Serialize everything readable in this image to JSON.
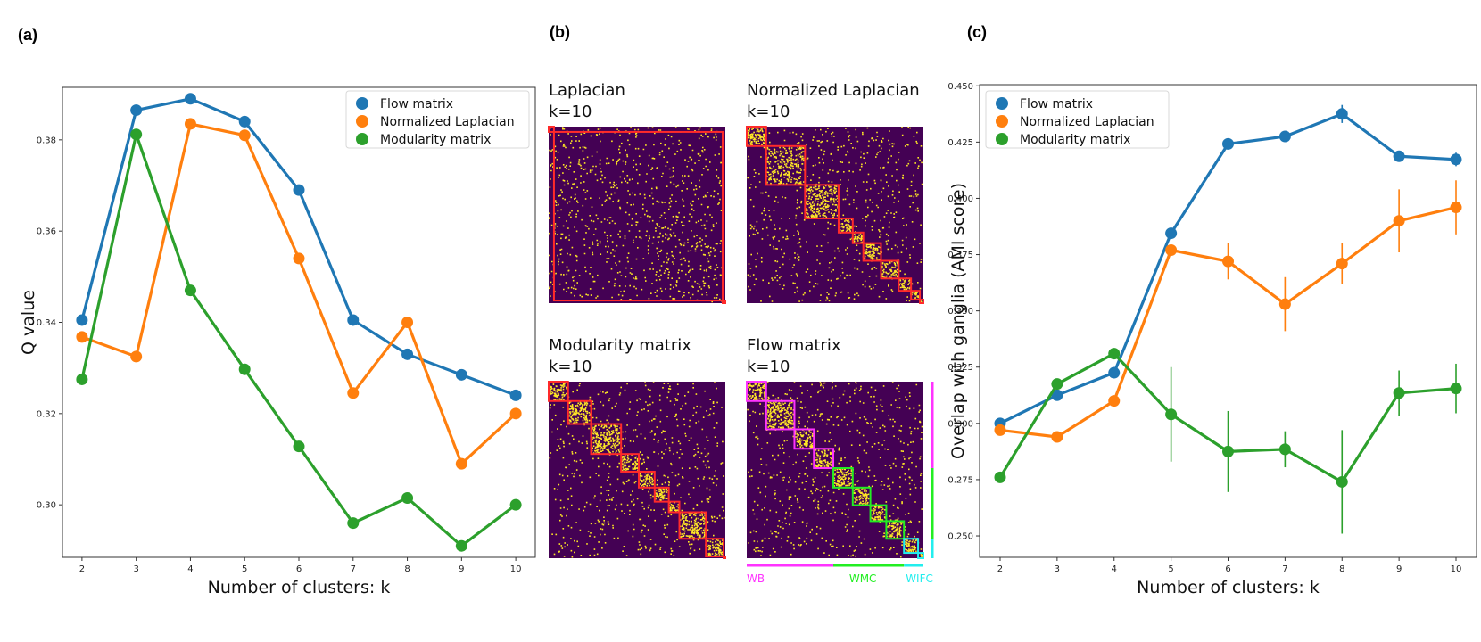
{
  "panels": {
    "a": "(a)",
    "b": "(b)",
    "c": "(c)"
  },
  "colors": {
    "flow": "#1f77b4",
    "laplacian": "#ff7f0e",
    "modularity": "#2ca02c",
    "matrix_bg": "#440154",
    "matrix_dot": "#fde725",
    "box_red": "#ff2a2a",
    "box_magenta": "#ff33ff",
    "box_green": "#22ee22",
    "box_cyan": "#22eeee"
  },
  "chart_data": [
    {
      "id": "a",
      "type": "line",
      "title": "",
      "xlabel": "Number of clusters: k",
      "ylabel": "Q value",
      "x": [
        2,
        3,
        4,
        5,
        6,
        7,
        8,
        9,
        10
      ],
      "xticks": [
        "2",
        "3",
        "4",
        "5",
        "6",
        "7",
        "8",
        "9",
        "10"
      ],
      "yticks": [
        "0.30",
        "0.32",
        "0.34",
        "0.36",
        "0.38"
      ],
      "ylim": [
        0.2885,
        0.3915
      ],
      "legend": "top-right",
      "series": [
        {
          "name": "Flow matrix",
          "color": "#1f77b4",
          "values": [
            0.3405,
            0.3865,
            0.389,
            0.384,
            0.369,
            0.3405,
            0.333,
            0.3285,
            0.324
          ]
        },
        {
          "name": "Normalized Laplacian",
          "color": "#ff7f0e",
          "values": [
            0.3368,
            0.3325,
            0.3835,
            0.381,
            0.354,
            0.3245,
            0.34,
            0.309,
            0.32
          ]
        },
        {
          "name": "Modularity matrix",
          "color": "#2ca02c",
          "values": [
            0.3275,
            0.3812,
            0.347,
            0.3297,
            0.3128,
            0.296,
            0.3015,
            0.291,
            0.3
          ]
        }
      ]
    },
    {
      "id": "c",
      "type": "line",
      "title": "",
      "xlabel": "Number of clusters: k",
      "ylabel": "Overlap with ganglia (AMI score)",
      "x": [
        2,
        3,
        4,
        5,
        6,
        7,
        8,
        9,
        10
      ],
      "xticks": [
        "2",
        "3",
        "4",
        "5",
        "6",
        "7",
        "8",
        "9",
        "10"
      ],
      "yticks": [
        "0.250",
        "0.275",
        "0.300",
        "0.325",
        "0.350",
        "0.375",
        "0.400",
        "0.425",
        "0.450"
      ],
      "ylim": [
        0.2405,
        0.4505
      ],
      "legend": "top-left",
      "series": [
        {
          "name": "Flow matrix",
          "color": "#1f77b4",
          "values": [
            0.3,
            0.3125,
            0.3225,
            0.3845,
            0.4242,
            0.4275,
            0.4375,
            0.4187,
            0.4173
          ],
          "err": [
            0,
            0,
            0,
            0,
            0,
            0,
            0.004,
            0,
            0.003
          ]
        },
        {
          "name": "Normalized Laplacian",
          "color": "#ff7f0e",
          "values": [
            0.297,
            0.294,
            0.31,
            0.377,
            0.372,
            0.353,
            0.371,
            0.39,
            0.396
          ],
          "err": [
            0,
            0,
            0,
            0,
            0.008,
            0.012,
            0.009,
            0.014,
            0.012
          ]
        },
        {
          "name": "Modularity matrix",
          "color": "#2ca02c",
          "values": [
            0.276,
            0.3175,
            0.331,
            0.304,
            0.2875,
            0.2885,
            0.274,
            0.3135,
            0.3155
          ],
          "err": [
            0,
            0,
            0,
            0.021,
            0.018,
            0.008,
            0.023,
            0.01,
            0.011
          ]
        }
      ]
    }
  ],
  "matrices": [
    {
      "id": "laplacian",
      "title": "Laplacian",
      "subtitle": "k=10",
      "box_color": "#ff2a2a",
      "clusters": [
        0.03,
        0.955,
        0.015
      ]
    },
    {
      "id": "normalized-laplacian",
      "title": "Normalized Laplacian",
      "subtitle": "k=10",
      "box_color": "#ff2a2a",
      "clusters": [
        0.11,
        0.22,
        0.19,
        0.08,
        0.06,
        0.1,
        0.1,
        0.07,
        0.05,
        0.02
      ]
    },
    {
      "id": "modularity-matrix",
      "title": "Modularity matrix",
      "subtitle": "k=10",
      "box_color": "#ff2a2a",
      "clusters": [
        0.11,
        0.13,
        0.17,
        0.1,
        0.09,
        0.08,
        0.06,
        0.15,
        0.1,
        0.01
      ]
    },
    {
      "id": "flow-matrix",
      "title": "Flow matrix",
      "subtitle": "k=10",
      "box_color": "#ff33ff",
      "clusters": [
        0.11,
        0.16,
        0.11,
        0.11,
        0.11,
        0.1,
        0.09,
        0.1,
        0.08,
        0.03
      ]
    }
  ],
  "flow_groups": [
    {
      "label": "WB",
      "color": "#ff33ff",
      "clusters": [
        0,
        1,
        2,
        3
      ]
    },
    {
      "label": "WMC",
      "color": "#22ee22",
      "clusters": [
        4,
        5,
        6,
        7
      ]
    },
    {
      "label": "WIFC",
      "color": "#22eeee",
      "clusters": [
        8,
        9
      ]
    }
  ]
}
